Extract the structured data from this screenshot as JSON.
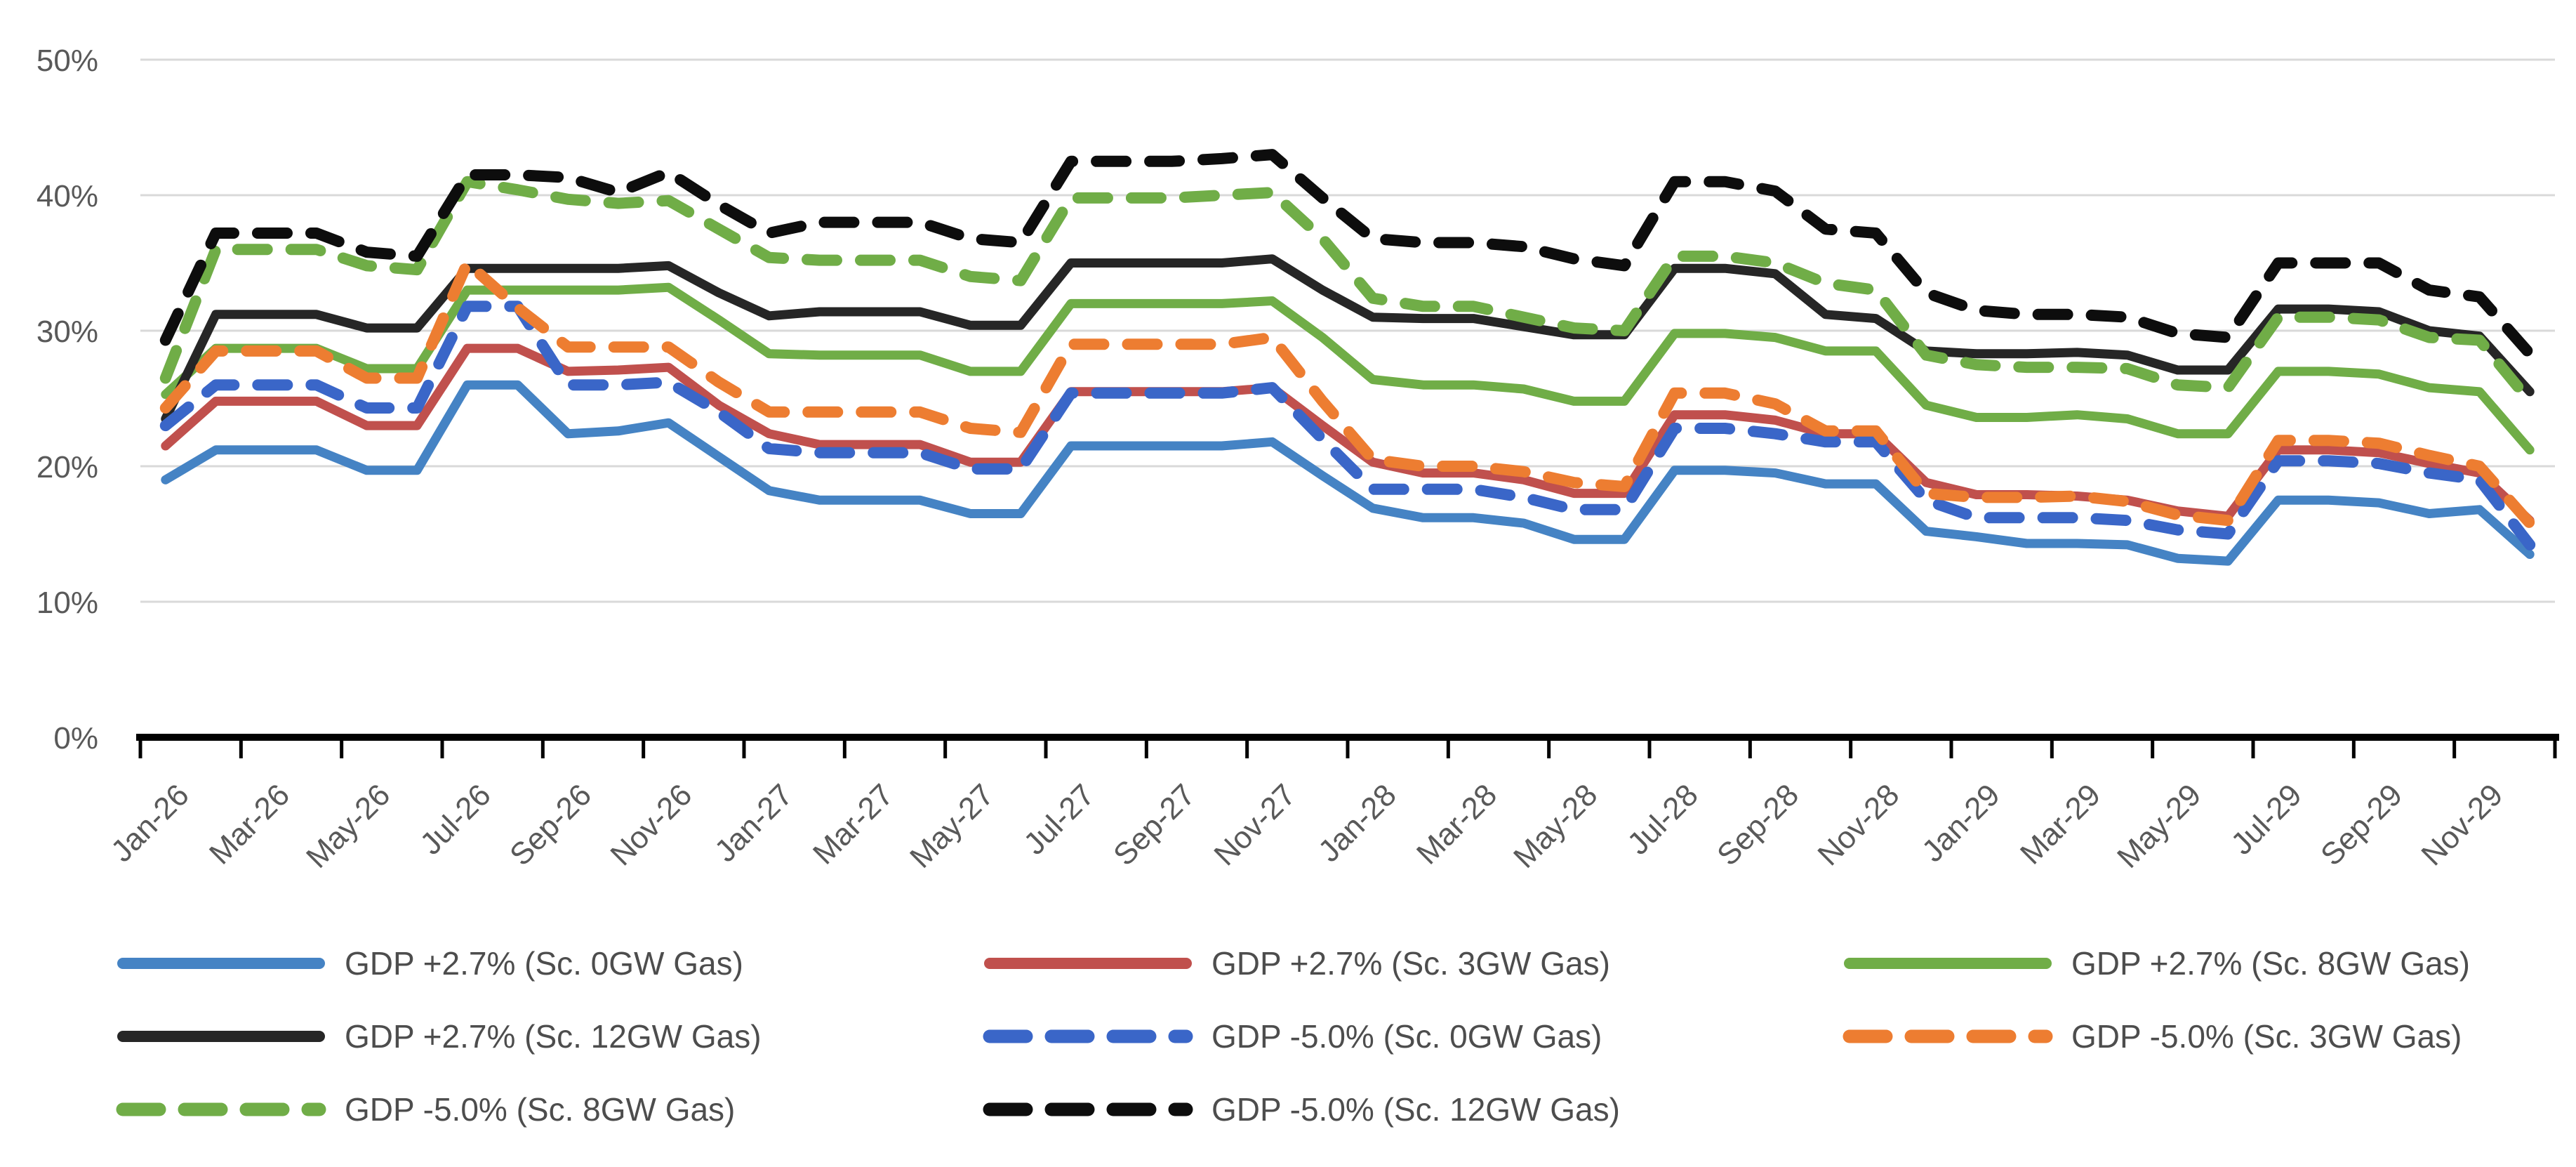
{
  "chart_data": {
    "type": "line",
    "title": "",
    "xlabel": "",
    "ylabel": "",
    "ylim": [
      0,
      50
    ],
    "y_tick_labels": [
      "0%",
      "10%",
      "20%",
      "30%",
      "40%",
      "50%"
    ],
    "y_tick_values": [
      0,
      10,
      20,
      30,
      40,
      50
    ],
    "grid": "horizontal",
    "legend_position": "bottom",
    "x": [
      "Jan-26",
      "Feb-26",
      "Mar-26",
      "Apr-26",
      "May-26",
      "Jun-26",
      "Jul-26",
      "Aug-26",
      "Sep-26",
      "Oct-26",
      "Nov-26",
      "Dec-26",
      "Jan-27",
      "Feb-27",
      "Mar-27",
      "Apr-27",
      "May-27",
      "Jun-27",
      "Jul-27",
      "Aug-27",
      "Sep-27",
      "Oct-27",
      "Nov-27",
      "Dec-27",
      "Jan-28",
      "Feb-28",
      "Mar-28",
      "Apr-28",
      "May-28",
      "Jun-28",
      "Jul-28",
      "Aug-28",
      "Sep-28",
      "Oct-28",
      "Nov-28",
      "Dec-28",
      "Jan-29",
      "Feb-29",
      "Mar-29",
      "Apr-29",
      "May-29",
      "Jun-29",
      "Jul-29",
      "Aug-29",
      "Sep-29",
      "Oct-29",
      "Nov-29",
      "Dec-29"
    ],
    "x_tick_labels": [
      "Jan-26",
      "Mar-26",
      "May-26",
      "Jul-26",
      "Sep-26",
      "Nov-26",
      "Jan-27",
      "Mar-27",
      "May-27",
      "Jul-27",
      "Sep-27",
      "Nov-27",
      "Jan-28",
      "Mar-28",
      "May-28",
      "Jul-28",
      "Sep-28",
      "Nov-28",
      "Jan-29",
      "Mar-29",
      "May-29",
      "Jul-29",
      "Sep-29",
      "Nov-29"
    ],
    "series": [
      {
        "name": "GDP +2.7% (Sc. 0GW Gas)",
        "color": "#4583C4",
        "dash": false,
        "values": [
          19.0,
          21.2,
          21.2,
          21.2,
          19.7,
          19.7,
          26.0,
          26.0,
          22.4,
          22.6,
          23.2,
          20.7,
          18.2,
          17.5,
          17.5,
          17.5,
          16.5,
          16.5,
          21.5,
          21.5,
          21.5,
          21.5,
          21.8,
          19.3,
          16.9,
          16.2,
          16.2,
          15.8,
          14.6,
          14.6,
          19.7,
          19.7,
          19.5,
          18.7,
          18.7,
          15.2,
          14.8,
          14.3,
          14.3,
          14.2,
          13.2,
          13.0,
          17.5,
          17.5,
          17.3,
          16.5,
          16.8,
          13.5
        ]
      },
      {
        "name": "GDP +2.7% (Sc. 3GW Gas)",
        "color": "#C0504D",
        "dash": false,
        "values": [
          21.5,
          24.8,
          24.8,
          24.8,
          23.0,
          23.0,
          28.7,
          28.7,
          27.0,
          27.1,
          27.3,
          24.5,
          22.4,
          21.6,
          21.6,
          21.6,
          20.3,
          20.3,
          25.5,
          25.5,
          25.5,
          25.5,
          25.8,
          23.0,
          20.3,
          19.5,
          19.5,
          19.0,
          18.0,
          18.0,
          23.8,
          23.8,
          23.4,
          22.4,
          22.4,
          18.8,
          17.9,
          17.9,
          17.8,
          17.5,
          16.7,
          16.3,
          21.2,
          21.2,
          21.0,
          20.2,
          19.5,
          16.0
        ]
      },
      {
        "name": "GDP +2.7% (Sc. 8GW Gas)",
        "color": "#70AD47",
        "dash": false,
        "values": [
          25.3,
          28.7,
          28.7,
          28.7,
          27.2,
          27.2,
          33.0,
          33.0,
          33.0,
          33.0,
          33.2,
          30.8,
          28.3,
          28.2,
          28.2,
          28.2,
          27.0,
          27.0,
          32.0,
          32.0,
          32.0,
          32.0,
          32.2,
          29.5,
          26.4,
          26.0,
          26.0,
          25.7,
          24.8,
          24.8,
          29.8,
          29.8,
          29.5,
          28.5,
          28.5,
          24.5,
          23.6,
          23.6,
          23.8,
          23.5,
          22.4,
          22.4,
          27.0,
          27.0,
          26.8,
          25.8,
          25.5,
          21.2
        ]
      },
      {
        "name": "GDP +2.7% (Sc. 12GW Gas)",
        "color": "#262626",
        "dash": false,
        "values": [
          23.5,
          31.2,
          31.2,
          31.2,
          30.2,
          30.2,
          34.6,
          34.6,
          34.6,
          34.6,
          34.8,
          32.8,
          31.1,
          31.4,
          31.4,
          31.4,
          30.4,
          30.4,
          35.0,
          35.0,
          35.0,
          35.0,
          35.3,
          33.0,
          31.0,
          30.9,
          30.9,
          30.3,
          29.7,
          29.7,
          34.6,
          34.6,
          34.2,
          31.2,
          30.9,
          28.5,
          28.3,
          28.3,
          28.4,
          28.2,
          27.1,
          27.1,
          31.6,
          31.6,
          31.4,
          30.0,
          29.6,
          25.5
        ]
      },
      {
        "name": "GDP -5.0% (Sc. 0GW Gas)",
        "color": "#3A66C8",
        "dash": true,
        "values": [
          23.0,
          26.0,
          26.0,
          26.0,
          24.3,
          24.3,
          31.8,
          31.8,
          26.0,
          26.0,
          26.2,
          24.0,
          21.3,
          21.0,
          21.0,
          21.0,
          19.8,
          19.8,
          25.4,
          25.4,
          25.4,
          25.4,
          25.8,
          22.0,
          18.3,
          18.3,
          18.3,
          17.7,
          16.8,
          16.8,
          22.8,
          22.8,
          22.4,
          21.8,
          21.8,
          17.5,
          16.2,
          16.2,
          16.2,
          16.0,
          15.3,
          15.0,
          20.4,
          20.4,
          20.2,
          19.5,
          19.0,
          14.2
        ]
      },
      {
        "name": "GDP -5.0% (Sc. 3GW Gas)",
        "color": "#ED7D31",
        "dash": true,
        "values": [
          24.3,
          28.5,
          28.5,
          28.5,
          26.5,
          26.5,
          35.0,
          31.7,
          28.8,
          28.8,
          28.8,
          26.2,
          24.0,
          24.0,
          24.0,
          24.0,
          22.8,
          22.5,
          29.0,
          29.0,
          29.0,
          29.0,
          29.5,
          24.8,
          20.5,
          20.0,
          20.0,
          19.6,
          18.8,
          18.5,
          25.4,
          25.4,
          24.6,
          22.6,
          22.6,
          18.0,
          17.7,
          17.7,
          17.8,
          17.4,
          16.4,
          16.0,
          21.9,
          21.9,
          21.7,
          20.8,
          20.0,
          15.8
        ]
      },
      {
        "name": "GDP -5.0% (Sc. 8GW Gas)",
        "color": "#70AD47",
        "dash": true,
        "values": [
          26.5,
          36.0,
          36.0,
          36.0,
          34.8,
          34.5,
          41.0,
          40.4,
          39.7,
          39.4,
          39.6,
          37.5,
          35.4,
          35.2,
          35.2,
          35.2,
          34.0,
          33.7,
          39.8,
          39.8,
          39.8,
          40.0,
          40.2,
          36.8,
          32.4,
          31.8,
          31.8,
          31.0,
          30.2,
          30.0,
          35.5,
          35.5,
          35.0,
          33.5,
          33.0,
          28.2,
          27.5,
          27.3,
          27.3,
          27.2,
          26.0,
          25.8,
          31.0,
          31.0,
          30.8,
          29.5,
          29.3,
          24.8
        ]
      },
      {
        "name": "GDP -5.0% (Sc. 12GW Gas)",
        "color": "#0D0D0D",
        "dash": true,
        "values": [
          29.3,
          37.2,
          37.2,
          37.2,
          35.8,
          35.5,
          41.5,
          41.5,
          41.3,
          40.2,
          41.7,
          39.3,
          37.2,
          38.0,
          38.0,
          38.0,
          36.8,
          36.5,
          42.5,
          42.5,
          42.5,
          42.7,
          43.0,
          39.8,
          36.8,
          36.5,
          36.5,
          36.2,
          35.3,
          34.8,
          41.0,
          41.0,
          40.3,
          37.5,
          37.2,
          32.8,
          31.5,
          31.2,
          31.2,
          31.0,
          29.8,
          29.5,
          35.0,
          35.0,
          35.0,
          33.0,
          32.5,
          28.3
        ]
      }
    ],
    "style": {
      "gridline_color": "#D9D9D9",
      "axis_line_color": "#000000",
      "tick_label_color": "#595959",
      "legend_text_color": "#4d4d4d"
    }
  }
}
